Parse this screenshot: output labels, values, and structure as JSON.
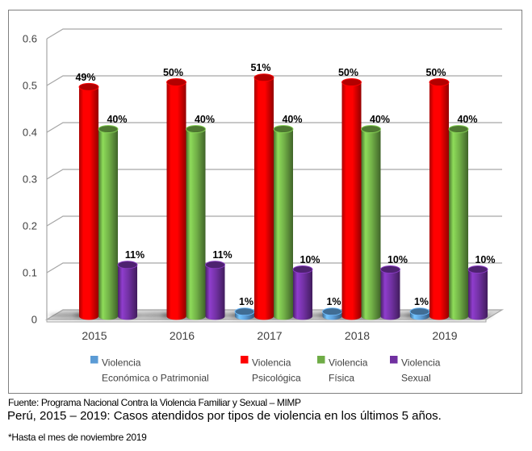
{
  "chart_data": {
    "type": "bar",
    "subtype": "3d-cylinder-clustered",
    "title": "",
    "categories": [
      "2015",
      "2016",
      "2017",
      "2018",
      "2019"
    ],
    "series": [
      {
        "name": "Violencia Económica o Patrimonial",
        "legend_lines": [
          "Violencia",
          "Económica o Patrimonial"
        ],
        "color": "#5B9BD5",
        "values": [
          0,
          0,
          0.01,
          0.01,
          0.01
        ],
        "labels": [
          "",
          "",
          "1%",
          "1%",
          "1%"
        ]
      },
      {
        "name": "Violencia Psicológica",
        "legend_lines": [
          "Violencia",
          "Psicológica"
        ],
        "color": "#FE0000",
        "values": [
          0.49,
          0.5,
          0.51,
          0.5,
          0.5
        ],
        "labels": [
          "49%",
          "50%",
          "51%",
          "50%",
          "50%"
        ]
      },
      {
        "name": "Violencia Física",
        "legend_lines": [
          "Violencia",
          "Física"
        ],
        "color": "#6FAC46",
        "values": [
          0.4,
          0.4,
          0.4,
          0.4,
          0.4
        ],
        "labels": [
          "40%",
          "40%",
          "40%",
          "40%",
          "40%"
        ]
      },
      {
        "name": "Violencia Sexual",
        "legend_lines": [
          "Violencia",
          "Sexual"
        ],
        "color": "#7030A0",
        "values": [
          0.11,
          0.11,
          0.1,
          0.1,
          0.1
        ],
        "labels": [
          "11%",
          "11%",
          "10%",
          "10%",
          "10%"
        ]
      }
    ],
    "y_axis": {
      "min": 0,
      "max": 0.6,
      "tick_interval": 0.1,
      "tick_labels": [
        "0",
        "0.1",
        "0.2",
        "0.3",
        "0.4",
        "0.5",
        "0.6"
      ]
    },
    "xlabel": "",
    "ylabel": "",
    "grid": true,
    "legend_position": "bottom",
    "colors": {
      "gridline": "#A6A6A6",
      "axis_text": "#404040",
      "data_label": "#000000",
      "floor_top": "#D6D6D6",
      "floor_face": "#F2F2F2",
      "frame_border": "#808080",
      "legend_text": "#404040"
    }
  },
  "footer": {
    "source": "Fuente: Programa Nacional Contra la Violencia Familiar y Sexual – MIMP",
    "title": "Perú, 2015 – 2019: Casos atendidos por tipos de violencia en los últimos 5 años.",
    "note": "*Hasta el mes de noviembre 2019"
  }
}
